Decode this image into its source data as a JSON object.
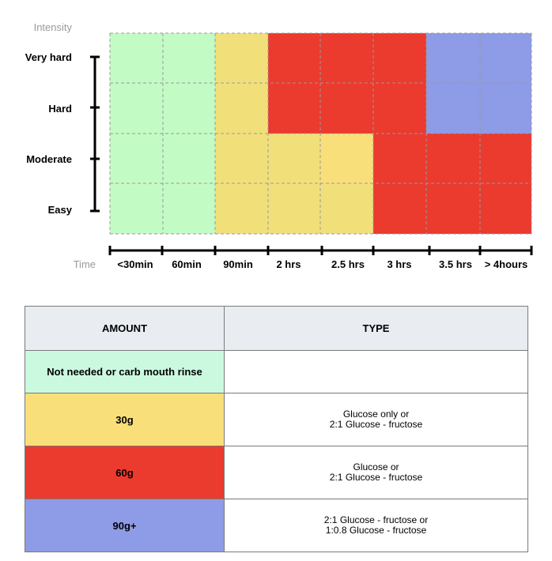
{
  "chart_data": {
    "type": "heatmap",
    "title": "",
    "xlabel": "Time",
    "ylabel": "Intensity",
    "x_categories": [
      "<30min",
      "60min",
      "90min",
      "2 hrs",
      "2.5 hrs",
      "3 hrs",
      "3.5 hrs",
      "> 4hours"
    ],
    "y_categories": [
      "Very hard",
      "Hard",
      "Moderate",
      "Easy"
    ],
    "grid": true,
    "cells": [
      [
        "rinse",
        "rinse",
        "30g",
        "60g",
        "60g",
        "60g",
        "90g+",
        "90g+"
      ],
      [
        "rinse",
        "rinse",
        "30g",
        "60g",
        "60g",
        "60g",
        "90g+",
        "90g+"
      ],
      [
        "rinse",
        "rinse",
        "30g",
        "30g",
        "30g-light",
        "60g",
        "60g",
        "60g"
      ],
      [
        "rinse",
        "rinse",
        "30g",
        "30g",
        "30g",
        "60g",
        "60g",
        "60g"
      ]
    ],
    "colors": {
      "rinse": "#c3fbc4",
      "30g": "#f1e07a",
      "30g-light": "#f9df7a",
      "60g": "#eb3a2e",
      "90g+": "#8e9be6",
      "grid": "#9a9a9a",
      "axis": "#000000"
    }
  },
  "table": {
    "header_amount": "AMOUNT",
    "header_type": "TYPE",
    "rows": [
      {
        "amount": "Not needed or carb mouth rinse",
        "type_line1": "",
        "type_line2": "",
        "color": "#cbf9e0"
      },
      {
        "amount": "30g",
        "type_line1": "Glucose only or",
        "type_line2": "2:1 Glucose - fructose",
        "color": "#f9df7a"
      },
      {
        "amount": "60g",
        "type_line1": "Glucose or",
        "type_line2": "2:1 Glucose - fructose",
        "color": "#eb3a2e"
      },
      {
        "amount": "90g+",
        "type_line1": "2:1 Glucose - fructose or",
        "type_line2": "1:0.8 Glucose - fructose",
        "color": "#8e9be6"
      }
    ]
  }
}
